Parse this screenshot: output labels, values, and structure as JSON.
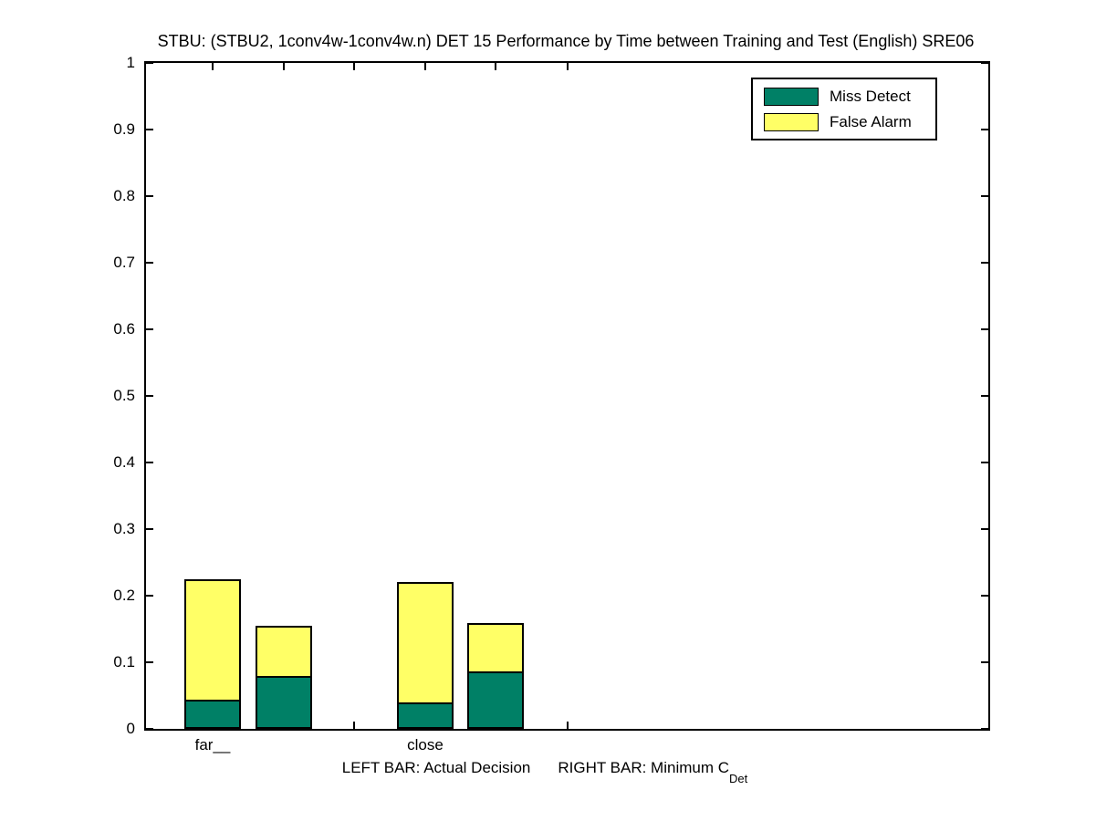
{
  "chart_data": {
    "type": "bar",
    "subtype": "grouped-stacked-pairs",
    "title": "STBU: (STBU2, 1conv4w-1conv4w.n) DET 15 Performance by Time between Training and Test (English) SRE06",
    "categories": [
      "far__",
      "close"
    ],
    "bars_per_category": [
      "Actual Decision",
      "Minimum CDet"
    ],
    "series": [
      {
        "name": "Miss Detect",
        "color": "#008066",
        "values": [
          [
            0.044,
            0.079
          ],
          [
            0.04,
            0.086
          ]
        ]
      },
      {
        "name": "False Alarm",
        "color": "#ffff66",
        "values": [
          [
            0.181,
            0.075
          ],
          [
            0.181,
            0.072
          ]
        ]
      }
    ],
    "stacked_totals": [
      [
        0.225,
        0.154
      ],
      [
        0.221,
        0.158
      ]
    ],
    "ylim": [
      0,
      1
    ],
    "ytick_values": [
      0,
      0.1,
      0.2,
      0.3,
      0.4,
      0.5,
      0.6,
      0.7,
      0.8,
      0.9,
      1
    ],
    "ytick_labels": [
      "0",
      "0.1",
      "0.2",
      "0.3",
      "0.4",
      "0.5",
      "0.6",
      "0.7",
      "0.8",
      "0.9",
      "1"
    ],
    "grid": false,
    "legend_position": "top-right-inside",
    "axis_box": true
  },
  "legend": {
    "items": [
      {
        "label": "Miss Detect",
        "color": "#008066"
      },
      {
        "label": "False Alarm",
        "color": "#ffff66"
      }
    ]
  },
  "caption": {
    "left": "LEFT BAR: Actual Decision",
    "right": "RIGHT BAR: Minimum C",
    "right_subscript": "Det"
  },
  "colors": {
    "miss_detect": "#008066",
    "false_alarm": "#ffff66",
    "axis": "#000000",
    "background": "#ffffff"
  }
}
